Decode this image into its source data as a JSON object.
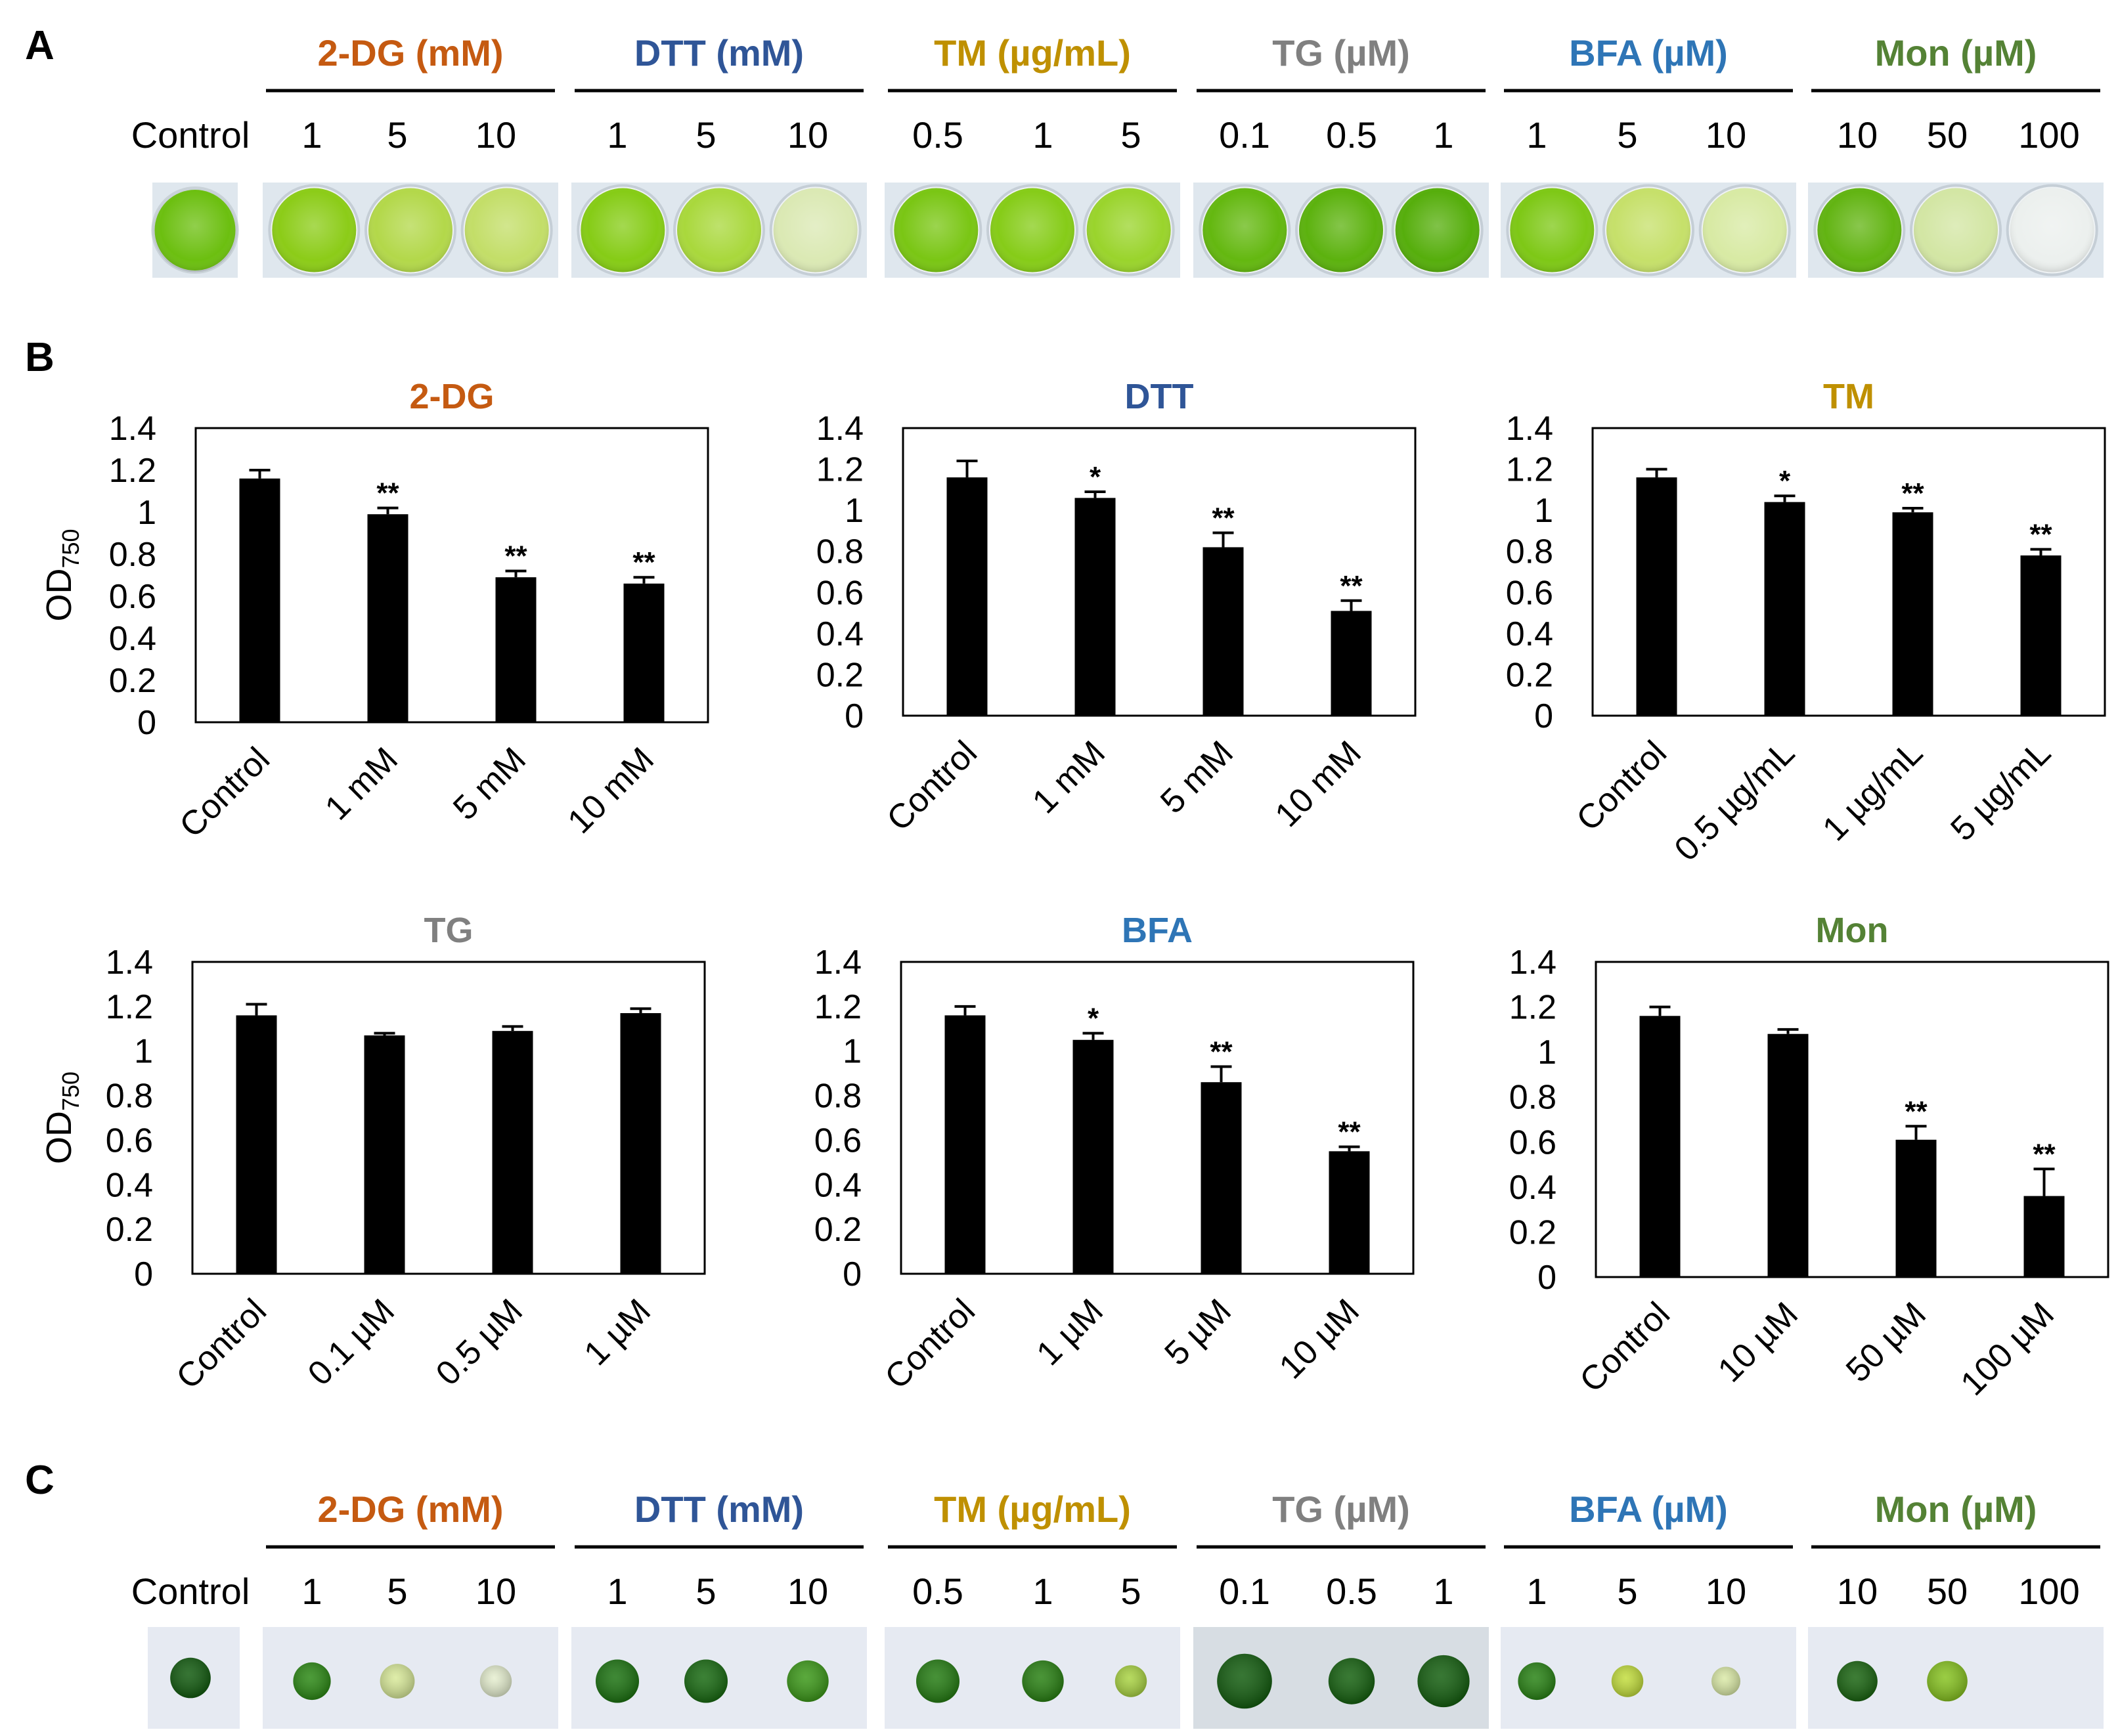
{
  "panels": {
    "a": "A",
    "b": "B",
    "c": "C"
  },
  "colors": {
    "2-DG": "#c55a11",
    "DTT": "#2f5597",
    "TM": "#bf9000",
    "TG": "#808080",
    "BFA": "#2e75b6",
    "Mon": "#548235"
  },
  "control_label": "Control",
  "groups": [
    {
      "key": "2-DG",
      "title": "2-DG (mM)",
      "conc": [
        "1",
        "5",
        "10"
      ]
    },
    {
      "key": "DTT",
      "title": "DTT (mM)",
      "conc": [
        "1",
        "5",
        "10"
      ]
    },
    {
      "key": "TM",
      "title": "TM (µg/mL)",
      "conc": [
        "0.5",
        "1",
        "5"
      ]
    },
    {
      "key": "TG",
      "title": "TG (µM)",
      "conc": [
        "0.1",
        "0.5",
        "1"
      ]
    },
    {
      "key": "BFA",
      "title": "BFA (µM)",
      "conc": [
        "1",
        "5",
        "10"
      ]
    },
    {
      "key": "Mon",
      "title": "Mon (µM)",
      "conc": [
        "10",
        "50",
        "100"
      ]
    }
  ],
  "photo_a": {
    "control": "#6cbf10",
    "wells": [
      [
        "#8ccc18",
        "#b3d84a",
        "#c3de68"
      ],
      [
        "#86cc16",
        "#a9d83c",
        "#dbe9b4"
      ],
      [
        "#7ac614",
        "#86cc18",
        "#9ad42c"
      ],
      [
        "#64b810",
        "#5cb20e",
        "#56ae0c"
      ],
      [
        "#7ec816",
        "#c6e06a",
        "#d8eaa4"
      ],
      [
        "#62b412",
        "#d3e6a4",
        "#ecf0ee"
      ]
    ]
  },
  "photo_c": {
    "control": {
      "color": "#135c10",
      "size": 0.7
    },
    "spots": [
      [
        {
          "color": "#2d8a16",
          "size": 0.65
        },
        {
          "color": "#d9ea9a",
          "size": 0.6
        },
        {
          "color": "#e6efd0",
          "size": 0.55
        }
      ],
      [
        {
          "color": "#1d7412",
          "size": 0.75
        },
        {
          "color": "#196b12",
          "size": 0.75
        },
        {
          "color": "#3d9a1a",
          "size": 0.72
        }
      ],
      [
        {
          "color": "#267e14",
          "size": 0.75
        },
        {
          "color": "#2a8214",
          "size": 0.72
        },
        {
          "color": "#aad444",
          "size": 0.55
        }
      ],
      [
        {
          "color": "#145e10",
          "size": 0.95
        },
        {
          "color": "#166210",
          "size": 0.8
        },
        {
          "color": "#156010",
          "size": 0.9
        }
      ],
      [
        {
          "color": "#2a8416",
          "size": 0.65
        },
        {
          "color": "#c3de3e",
          "size": 0.55
        },
        {
          "color": "#dbeaa8",
          "size": 0.5
        }
      ],
      [
        {
          "color": "#1b6612",
          "size": 0.7
        },
        {
          "color": "#88c422",
          "size": 0.7
        },
        {
          "color": "#e8eef2",
          "size": 0.0
        }
      ]
    ]
  },
  "y_axis_label": "OD",
  "y_axis_subscript": "750",
  "chart_data": [
    {
      "type": "bar",
      "key": "2-DG",
      "title": "2-DG",
      "categories": [
        "Control",
        "1 mM",
        "5 mM",
        "10 mM"
      ],
      "values": [
        1.16,
        0.99,
        0.69,
        0.66
      ],
      "errors": [
        0.04,
        0.03,
        0.03,
        0.03
      ],
      "significance": [
        "",
        "**",
        "**",
        "**"
      ],
      "ylim": [
        0,
        1.4
      ],
      "yticks": [
        "0",
        "0.2",
        "0.4",
        "0.6",
        "0.8",
        "1",
        "1.2",
        "1.4"
      ],
      "ylabel": "OD750"
    },
    {
      "type": "bar",
      "key": "DTT",
      "title": "DTT",
      "categories": [
        "Control",
        "1 mM",
        "5 mM",
        "10 mM"
      ],
      "values": [
        1.16,
        1.06,
        0.82,
        0.51
      ],
      "errors": [
        0.08,
        0.03,
        0.07,
        0.05
      ],
      "significance": [
        "",
        "*",
        "**",
        "**"
      ],
      "ylim": [
        0,
        1.4
      ],
      "yticks": [
        "0",
        "0.2",
        "0.4",
        "0.6",
        "0.8",
        "1",
        "1.2",
        "1.4"
      ],
      "ylabel": ""
    },
    {
      "type": "bar",
      "key": "TM",
      "title": "TM",
      "categories": [
        "Control",
        "0.5 µg/mL",
        "1 µg/mL",
        "5 µg/mL"
      ],
      "values": [
        1.16,
        1.04,
        0.99,
        0.78
      ],
      "errors": [
        0.04,
        0.03,
        0.02,
        0.03
      ],
      "significance": [
        "",
        "*",
        "**",
        "**"
      ],
      "ylim": [
        0,
        1.4
      ],
      "yticks": [
        "0",
        "0.2",
        "0.4",
        "0.6",
        "0.8",
        "1",
        "1.2",
        "1.4"
      ],
      "ylabel": ""
    },
    {
      "type": "bar",
      "key": "TG",
      "title": "TG",
      "categories": [
        "Control",
        "0.1 µM",
        "0.5 µM",
        "1 µM"
      ],
      "values": [
        1.16,
        1.07,
        1.09,
        1.17
      ],
      "errors": [
        0.05,
        0.01,
        0.02,
        0.02
      ],
      "significance": [
        "",
        "",
        "",
        ""
      ],
      "ylim": [
        0,
        1.4
      ],
      "yticks": [
        "0",
        "0.2",
        "0.4",
        "0.6",
        "0.8",
        "1",
        "1.2",
        "1.4"
      ],
      "ylabel": "OD750"
    },
    {
      "type": "bar",
      "key": "BFA",
      "title": "BFA",
      "categories": [
        "Control",
        "1 µM",
        "5 µM",
        "10 µM"
      ],
      "values": [
        1.16,
        1.05,
        0.86,
        0.55
      ],
      "errors": [
        0.04,
        0.03,
        0.07,
        0.02
      ],
      "significance": [
        "",
        "*",
        "**",
        "**"
      ],
      "ylim": [
        0,
        1.4
      ],
      "yticks": [
        "0",
        "0.2",
        "0.4",
        "0.6",
        "0.8",
        "1",
        "1.2",
        "1.4"
      ],
      "ylabel": ""
    },
    {
      "type": "bar",
      "key": "Mon",
      "title": "Mon",
      "categories": [
        "Control",
        "10 µM",
        "50 µM",
        "100 µM"
      ],
      "values": [
        1.16,
        1.08,
        0.61,
        0.36
      ],
      "errors": [
        0.04,
        0.02,
        0.06,
        0.12
      ],
      "significance": [
        "",
        "",
        "**",
        "**"
      ],
      "ylim": [
        0,
        1.4
      ],
      "yticks": [
        "0",
        "0.2",
        "0.4",
        "0.6",
        "0.8",
        "1",
        "1.2",
        "1.4"
      ],
      "ylabel": ""
    }
  ]
}
